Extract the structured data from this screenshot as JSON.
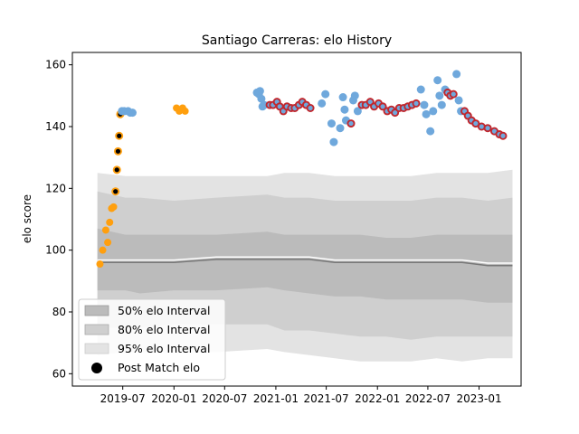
{
  "chart_data": {
    "type": "scatter",
    "title": "Santiago Carreras: elo History",
    "xlabel": "",
    "ylabel": "elo score",
    "xlim": [
      "2019-01-01",
      "2023-06-01"
    ],
    "ylim": [
      56,
      164
    ],
    "x_ticks": [
      "2019-07",
      "2020-01",
      "2020-07",
      "2021-01",
      "2021-07",
      "2022-01",
      "2022-07",
      "2023-01"
    ],
    "y_ticks": [
      60,
      80,
      100,
      120,
      140,
      160
    ],
    "grid": false,
    "legend": {
      "placement": "lower-left",
      "entries": [
        "50% elo Interval",
        "80% elo Interval",
        "95% elo Interval",
        "Post Match elo"
      ]
    },
    "colors": {
      "band_95": "#e3e3e3",
      "band_80": "#cfcfcf",
      "band_50": "#bbbbbb",
      "median_dark": "#777777",
      "median_light": "#ffffff",
      "orange": "#ff9f0e",
      "blue": "#6fa8dc",
      "red": "#c1272d",
      "black_core": "#000000"
    },
    "intervals": {
      "dates": [
        "2019-04-01",
        "2019-07-10",
        "2019-09-01",
        "2020-01-01",
        "2020-06-01",
        "2020-12-01",
        "2021-02-01",
        "2021-05-01",
        "2021-08-01",
        "2021-11-01",
        "2022-02-01",
        "2022-05-01",
        "2022-08-01",
        "2022-11-01",
        "2023-02-01",
        "2023-05-01"
      ],
      "p95_high": [
        125,
        124,
        124,
        124,
        124,
        124,
        125,
        125,
        124,
        124,
        124,
        124,
        125,
        125,
        125,
        126
      ],
      "p80_high": [
        119,
        117,
        117,
        116,
        117,
        118,
        117,
        117,
        116,
        116,
        116,
        116,
        117,
        117,
        116,
        117
      ],
      "p50_high": [
        107,
        105,
        105,
        105,
        105,
        106,
        105,
        105,
        105,
        105,
        104,
        104,
        105,
        105,
        105,
        105
      ],
      "median": [
        96,
        96,
        96,
        96,
        97,
        97,
        97,
        97,
        96,
        96,
        96,
        96,
        96,
        96,
        95,
        95
      ],
      "p50_low": [
        87,
        87,
        86,
        87,
        87,
        88,
        87,
        86,
        85,
        85,
        84,
        84,
        84,
        84,
        83,
        83
      ],
      "p80_low": [
        75,
        75,
        75,
        76,
        76,
        76,
        74,
        74,
        73,
        72,
        72,
        71,
        72,
        72,
        72,
        72
      ],
      "p95_low": [
        66,
        67,
        67,
        67,
        67,
        68,
        67,
        66,
        65,
        64,
        64,
        64,
        65,
        64,
        65,
        65
      ]
    },
    "series": [
      {
        "name": "Post Match elo",
        "points": [
          {
            "date": "2019-04-10",
            "elo": 95.5,
            "color": "orange"
          },
          {
            "date": "2019-04-20",
            "elo": 100,
            "color": "orange"
          },
          {
            "date": "2019-05-01",
            "elo": 106.5,
            "color": "orange"
          },
          {
            "date": "2019-05-08",
            "elo": 102.5,
            "color": "orange"
          },
          {
            "date": "2019-05-15",
            "elo": 109,
            "color": "orange"
          },
          {
            "date": "2019-05-22",
            "elo": 113.5,
            "color": "orange"
          },
          {
            "date": "2019-05-29",
            "elo": 114,
            "color": "orange"
          },
          {
            "date": "2019-06-05",
            "elo": 119,
            "color": "orange_core"
          },
          {
            "date": "2019-06-10",
            "elo": 126,
            "color": "orange_core"
          },
          {
            "date": "2019-06-14",
            "elo": 132,
            "color": "orange_core"
          },
          {
            "date": "2019-06-18",
            "elo": 137,
            "color": "orange_core"
          },
          {
            "date": "2019-06-22",
            "elo": 144,
            "color": "orange_core"
          },
          {
            "date": "2019-06-28",
            "elo": 145,
            "color": "blue"
          },
          {
            "date": "2019-07-06",
            "elo": 145,
            "color": "blue"
          },
          {
            "date": "2019-07-20",
            "elo": 145,
            "color": "blue"
          },
          {
            "date": "2019-07-28",
            "elo": 144.5,
            "color": "blue"
          },
          {
            "date": "2019-08-05",
            "elo": 144.5,
            "color": "blue"
          },
          {
            "date": "2020-01-10",
            "elo": 146,
            "color": "orange"
          },
          {
            "date": "2020-01-20",
            "elo": 145,
            "color": "orange"
          },
          {
            "date": "2020-02-01",
            "elo": 146,
            "color": "orange"
          },
          {
            "date": "2020-02-10",
            "elo": 145,
            "color": "orange"
          },
          {
            "date": "2020-10-25",
            "elo": 151,
            "color": "blue"
          },
          {
            "date": "2020-11-01",
            "elo": 150.5,
            "color": "blue"
          },
          {
            "date": "2020-11-05",
            "elo": 151.5,
            "color": "blue"
          },
          {
            "date": "2020-11-10",
            "elo": 149,
            "color": "blue"
          },
          {
            "date": "2020-11-14",
            "elo": 146.5,
            "color": "blue"
          },
          {
            "date": "2020-11-20",
            "elo": 147,
            "color": "blue"
          },
          {
            "date": "2020-12-10",
            "elo": 147,
            "color": "red"
          },
          {
            "date": "2020-12-22",
            "elo": 147,
            "color": "red"
          },
          {
            "date": "2021-01-05",
            "elo": 148,
            "color": "red"
          },
          {
            "date": "2021-01-15",
            "elo": 146.5,
            "color": "red"
          },
          {
            "date": "2021-01-28",
            "elo": 145,
            "color": "red"
          },
          {
            "date": "2021-02-10",
            "elo": 146.5,
            "color": "red"
          },
          {
            "date": "2021-02-25",
            "elo": 146,
            "color": "red"
          },
          {
            "date": "2021-03-10",
            "elo": 146,
            "color": "red"
          },
          {
            "date": "2021-03-25",
            "elo": 147,
            "color": "red"
          },
          {
            "date": "2021-04-06",
            "elo": 148,
            "color": "red"
          },
          {
            "date": "2021-04-20",
            "elo": 147,
            "color": "red"
          },
          {
            "date": "2021-05-05",
            "elo": 146,
            "color": "red"
          },
          {
            "date": "2021-06-15",
            "elo": 147.5,
            "color": "blue"
          },
          {
            "date": "2021-06-28",
            "elo": 150.5,
            "color": "blue"
          },
          {
            "date": "2021-07-20",
            "elo": 141,
            "color": "blue"
          },
          {
            "date": "2021-07-28",
            "elo": 135,
            "color": "blue"
          },
          {
            "date": "2021-08-20",
            "elo": 139.5,
            "color": "blue"
          },
          {
            "date": "2021-08-30",
            "elo": 149.5,
            "color": "blue"
          },
          {
            "date": "2021-09-05",
            "elo": 145.5,
            "color": "blue"
          },
          {
            "date": "2021-09-10",
            "elo": 142,
            "color": "blue"
          },
          {
            "date": "2021-09-28",
            "elo": 141,
            "color": "red"
          },
          {
            "date": "2021-10-06",
            "elo": 148.5,
            "color": "blue"
          },
          {
            "date": "2021-10-12",
            "elo": 150,
            "color": "blue"
          },
          {
            "date": "2021-10-22",
            "elo": 145,
            "color": "blue"
          },
          {
            "date": "2021-11-06",
            "elo": 147,
            "color": "red"
          },
          {
            "date": "2021-11-20",
            "elo": 147,
            "color": "red"
          },
          {
            "date": "2021-12-06",
            "elo": 148,
            "color": "red"
          },
          {
            "date": "2021-12-20",
            "elo": 146.5,
            "color": "red"
          },
          {
            "date": "2022-01-05",
            "elo": 147.5,
            "color": "red"
          },
          {
            "date": "2022-01-20",
            "elo": 146.5,
            "color": "red"
          },
          {
            "date": "2022-02-05",
            "elo": 145,
            "color": "red"
          },
          {
            "date": "2022-02-20",
            "elo": 145.5,
            "color": "red"
          },
          {
            "date": "2022-03-05",
            "elo": 144.5,
            "color": "red"
          },
          {
            "date": "2022-03-20",
            "elo": 146,
            "color": "red"
          },
          {
            "date": "2022-04-05",
            "elo": 146,
            "color": "red"
          },
          {
            "date": "2022-04-20",
            "elo": 146.5,
            "color": "red"
          },
          {
            "date": "2022-05-05",
            "elo": 147,
            "color": "red"
          },
          {
            "date": "2022-05-20",
            "elo": 147.5,
            "color": "red"
          },
          {
            "date": "2022-06-06",
            "elo": 152,
            "color": "blue"
          },
          {
            "date": "2022-06-18",
            "elo": 147,
            "color": "blue"
          },
          {
            "date": "2022-06-25",
            "elo": 144,
            "color": "blue"
          },
          {
            "date": "2022-07-10",
            "elo": 138.5,
            "color": "blue"
          },
          {
            "date": "2022-07-20",
            "elo": 145,
            "color": "blue"
          },
          {
            "date": "2022-08-05",
            "elo": 155,
            "color": "blue"
          },
          {
            "date": "2022-08-12",
            "elo": 150,
            "color": "blue"
          },
          {
            "date": "2022-08-20",
            "elo": 147,
            "color": "blue"
          },
          {
            "date": "2022-09-01",
            "elo": 152,
            "color": "blue"
          },
          {
            "date": "2022-09-10",
            "elo": 151,
            "color": "red"
          },
          {
            "date": "2022-09-20",
            "elo": 150,
            "color": "red"
          },
          {
            "date": "2022-10-01",
            "elo": 150.5,
            "color": "red"
          },
          {
            "date": "2022-10-12",
            "elo": 157,
            "color": "blue"
          },
          {
            "date": "2022-10-20",
            "elo": 148.5,
            "color": "blue"
          },
          {
            "date": "2022-10-28",
            "elo": 145,
            "color": "blue"
          },
          {
            "date": "2022-11-10",
            "elo": 145,
            "color": "red"
          },
          {
            "date": "2022-11-22",
            "elo": 143.5,
            "color": "red"
          },
          {
            "date": "2022-12-05",
            "elo": 142,
            "color": "red"
          },
          {
            "date": "2022-12-20",
            "elo": 141,
            "color": "red"
          },
          {
            "date": "2023-01-10",
            "elo": 140,
            "color": "red"
          },
          {
            "date": "2023-02-01",
            "elo": 139.5,
            "color": "red"
          },
          {
            "date": "2023-02-25",
            "elo": 138.5,
            "color": "red"
          },
          {
            "date": "2023-03-15",
            "elo": 137.5,
            "color": "red"
          },
          {
            "date": "2023-03-28",
            "elo": 137,
            "color": "red"
          }
        ]
      }
    ]
  }
}
